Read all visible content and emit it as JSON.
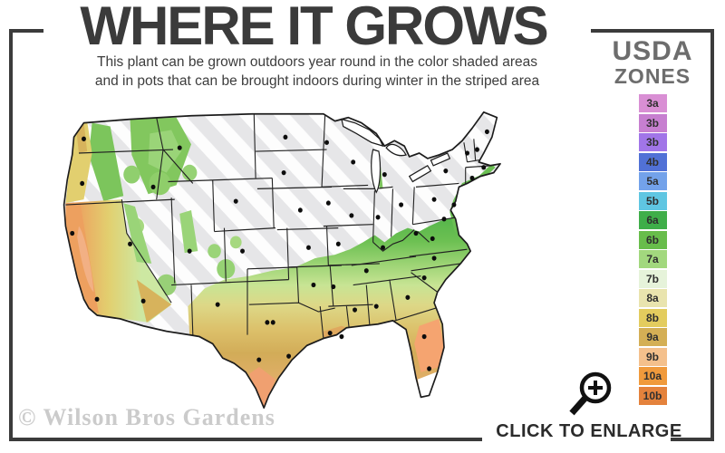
{
  "header": {
    "title": "WHERE IT GROWS",
    "subtitle_line1": "This plant can be grown outdoors year round in the color shaded areas",
    "subtitle_line2": "and in pots that can be brought indoors during winter in the striped area"
  },
  "legend": {
    "title_line1": "USDA",
    "title_line2": "ZONES",
    "zones": [
      {
        "label": "3a",
        "color": "#d98fd4"
      },
      {
        "label": "3b",
        "color": "#c77fd0"
      },
      {
        "label": "3b",
        "color": "#a175e8"
      },
      {
        "label": "4b",
        "color": "#5171d6"
      },
      {
        "label": "5a",
        "color": "#73a2ea"
      },
      {
        "label": "5b",
        "color": "#5fc6e2"
      },
      {
        "label": "6a",
        "color": "#3fae49"
      },
      {
        "label": "6b",
        "color": "#68bd4b"
      },
      {
        "label": "7a",
        "color": "#a2d87e"
      },
      {
        "label": "7b",
        "color": "#e6f3da"
      },
      {
        "label": "8a",
        "color": "#e9e4ae"
      },
      {
        "label": "8b",
        "color": "#e3cc5e"
      },
      {
        "label": "9a",
        "color": "#d4af55"
      },
      {
        "label": "9b",
        "color": "#f4c08c"
      },
      {
        "label": "10a",
        "color": "#f09a3c"
      },
      {
        "label": "10b",
        "color": "#e4823c"
      }
    ]
  },
  "map": {
    "region": "United States",
    "striped_fill": "#e6e6e8",
    "stripe_color": "#ffffff",
    "outline_color": "#1c1c1c",
    "city_dot_color": "#0d0d0d"
  },
  "footer": {
    "watermark": "© Wilson Bros Gardens",
    "enlarge_label": "CLICK TO ENLARGE"
  }
}
